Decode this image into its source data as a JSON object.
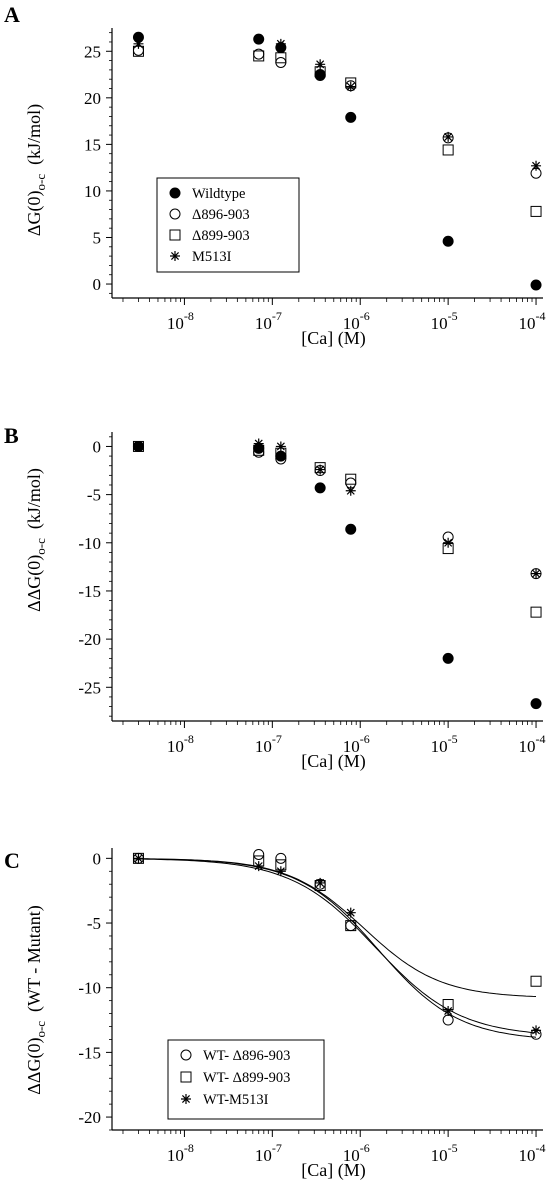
{
  "figure": {
    "panels": [
      {
        "letter": "A",
        "ylabel_main": "ΔG(0)",
        "ylabel_sub": "o-c",
        "ylabel_unit": "(kJ/mol)",
        "xlabel": "[Ca] (M)",
        "legend": [
          "Wildtype",
          "Δ896-903",
          "Δ899-903",
          "M513I"
        ]
      },
      {
        "letter": "B",
        "ylabel_main": "ΔΔG(0)",
        "ylabel_sub": "o-c",
        "ylabel_unit": "(kJ/mol)",
        "xlabel": "[Ca] (M)",
        "legend": []
      },
      {
        "letter": "C",
        "ylabel_main": "ΔΔG(0)",
        "ylabel_sub": "o-c",
        "ylabel_unit": "(WT - Mutant)",
        "xlabel": "[Ca] (M)",
        "legend": [
          "WT- Δ896-903",
          "WT- Δ899-903",
          "WT-M513I"
        ]
      }
    ]
  },
  "chart_data": [
    {
      "type": "scatter",
      "title": "",
      "xlabel": "[Ca] (M)",
      "ylabel": "ΔG(0)o-c (kJ/mol)",
      "xscale": "log",
      "xlim": [
        1.5e-09,
        0.00012
      ],
      "ylim": [
        -1.5,
        27.5
      ],
      "xticks": [
        1e-08,
        1e-07,
        1e-06,
        1e-05,
        0.0001
      ],
      "yticks": [
        0,
        5,
        10,
        15,
        20,
        25
      ],
      "legend_position": "lower-left",
      "grid": false,
      "series": [
        {
          "name": "Wildtype",
          "marker": "filled-circle",
          "x": [
            3e-09,
            7e-08,
            1.25e-07,
            3.5e-07,
            7.8e-07,
            1e-05,
            0.0001
          ],
          "y": [
            26.5,
            26.3,
            25.4,
            22.5,
            17.9,
            4.6,
            -0.1
          ]
        },
        {
          "name": "Δ896-903",
          "marker": "open-circle",
          "x": [
            3e-09,
            7e-08,
            1.25e-07,
            3.5e-07,
            7.8e-07,
            1e-05,
            0.0001
          ],
          "y": [
            25.1,
            24.7,
            23.8,
            22.4,
            21.3,
            15.7,
            11.9
          ]
        },
        {
          "name": "Δ899-903",
          "marker": "open-square",
          "x": [
            3e-09,
            7e-08,
            1.25e-07,
            3.5e-07,
            7.8e-07,
            1e-05,
            0.0001
          ],
          "y": [
            25.0,
            24.5,
            24.3,
            22.8,
            21.6,
            14.4,
            7.8
          ]
        },
        {
          "name": "M513I",
          "marker": "asterisk",
          "x": [
            3e-09,
            7e-08,
            1.25e-07,
            3.5e-07,
            7.8e-07,
            1e-05,
            0.0001
          ],
          "y": [
            25.8,
            26.3,
            25.8,
            23.6,
            21.2,
            15.8,
            12.7
          ]
        }
      ]
    },
    {
      "type": "scatter",
      "title": "",
      "xlabel": "[Ca] (M)",
      "ylabel": "ΔΔG(0)o-c (kJ/mol)",
      "xscale": "log",
      "xlim": [
        1.5e-09,
        0.00012
      ],
      "ylim": [
        -28.5,
        1.5
      ],
      "xticks": [
        1e-08,
        1e-07,
        1e-06,
        1e-05,
        0.0001
      ],
      "yticks": [
        0,
        -5,
        -10,
        -15,
        -20,
        -25
      ],
      "grid": false,
      "series": [
        {
          "marker": "filled-circle",
          "x": [
            3e-09,
            7e-08,
            1.25e-07,
            3.5e-07,
            7.8e-07,
            1e-05,
            0.0001
          ],
          "y": [
            0,
            -0.2,
            -1.0,
            -4.3,
            -8.6,
            -22.0,
            -26.7
          ]
        },
        {
          "marker": "open-circle",
          "x": [
            3e-09,
            7e-08,
            1.25e-07,
            3.5e-07,
            7.8e-07,
            1e-05,
            0.0001
          ],
          "y": [
            0,
            -0.6,
            -1.3,
            -2.5,
            -3.8,
            -9.4,
            -13.2
          ]
        },
        {
          "marker": "open-square",
          "x": [
            3e-09,
            7e-08,
            1.25e-07,
            3.5e-07,
            7.8e-07,
            1e-05,
            0.0001
          ],
          "y": [
            0,
            -0.4,
            -0.7,
            -2.2,
            -3.4,
            -10.6,
            -17.2
          ]
        },
        {
          "marker": "asterisk",
          "x": [
            3e-09,
            7e-08,
            1.25e-07,
            3.5e-07,
            7.8e-07,
            1e-05,
            0.0001
          ],
          "y": [
            0,
            0.3,
            0,
            -2.4,
            -4.6,
            -10.0,
            -13.2
          ]
        }
      ]
    },
    {
      "type": "scatter",
      "title": "",
      "xlabel": "[Ca] (M)",
      "ylabel": "ΔΔG(0)o-c (WT - Mutant)",
      "xscale": "log",
      "xlim": [
        1.5e-09,
        0.00012
      ],
      "ylim": [
        -21,
        0.8
      ],
      "xticks": [
        1e-08,
        1e-07,
        1e-06,
        1e-05,
        0.0001
      ],
      "yticks": [
        0,
        -5,
        -10,
        -15,
        -20
      ],
      "legend_position": "lower-left",
      "grid": false,
      "series": [
        {
          "name": "WT- Δ896-903",
          "marker": "open-circle",
          "x": [
            3e-09,
            7e-08,
            1.25e-07,
            3.5e-07,
            7.8e-07,
            1e-05,
            0.0001
          ],
          "y": [
            0,
            0.3,
            0,
            -2.0,
            -5.2,
            -12.5,
            -13.6
          ],
          "fit": {
            "ymax": -14.1,
            "ec50": 1.6e-06,
            "hill": 0.95
          }
        },
        {
          "name": "WT- Δ899-903",
          "marker": "open-square",
          "x": [
            3e-09,
            7e-08,
            1.25e-07,
            3.5e-07,
            7.8e-07,
            1e-05,
            0.0001
          ],
          "y": [
            0,
            -0.2,
            -0.5,
            -2.1,
            -5.2,
            -11.3,
            -9.5
          ],
          "fit": {
            "ymax": -10.8,
            "ec50": 1.1e-06,
            "hill": 1.0
          }
        },
        {
          "name": "WT-M513I",
          "marker": "asterisk",
          "x": [
            3e-09,
            7e-08,
            1.25e-07,
            3.5e-07,
            7.8e-07,
            1e-05,
            0.0001
          ],
          "y": [
            0,
            -0.6,
            -1.0,
            -1.9,
            -4.2,
            -11.8,
            -13.3
          ],
          "fit": {
            "ymax": -13.8,
            "ec50": 1.5e-06,
            "hill": 0.9
          }
        }
      ]
    }
  ]
}
